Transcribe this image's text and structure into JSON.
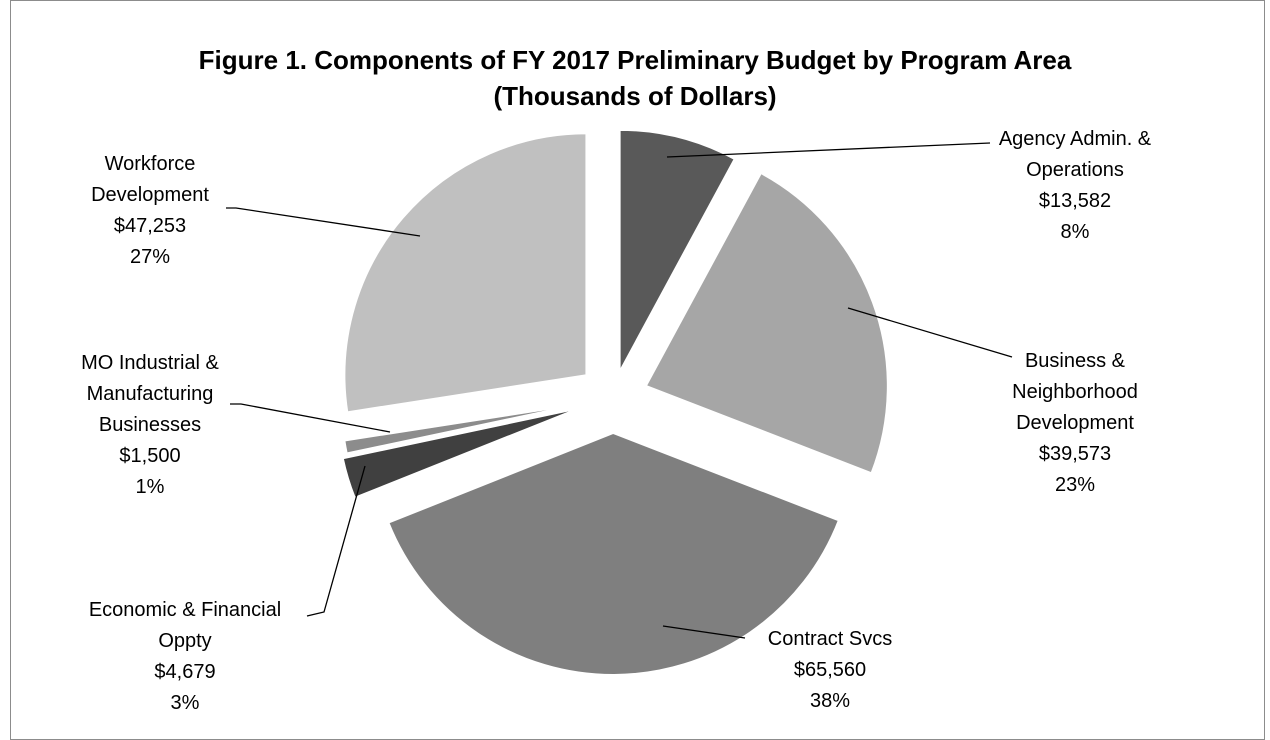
{
  "chart_data": {
    "type": "pie",
    "title": [
      "Figure 1. Components of FY 2017 Preliminary Budget by Program Area",
      "(Thousands of Dollars)"
    ],
    "slices": [
      {
        "label": [
          "Agency Admin. &",
          "Operations"
        ],
        "value": 13582,
        "value_label": "$13,582",
        "percent_label": "8%",
        "color": "#595959"
      },
      {
        "label": [
          "Business &",
          "Neighborhood",
          "Development"
        ],
        "value": 39573,
        "value_label": "$39,573",
        "percent_label": "23%",
        "color": "#a6a6a6"
      },
      {
        "label": [
          "Contract Svcs"
        ],
        "value": 65560,
        "value_label": "$65,560",
        "percent_label": "38%",
        "color": "#7f7f7f"
      },
      {
        "label": [
          "Economic & Financial",
          "Oppty"
        ],
        "value": 4679,
        "value_label": "$4,679",
        "percent_label": "3%",
        "color": "#404040"
      },
      {
        "label": [
          "MO Industrial &",
          "Manufacturing",
          "Businesses"
        ],
        "value": 1500,
        "value_label": "$1,500",
        "percent_label": "1%",
        "color": "#8c8c8c"
      },
      {
        "label": [
          "Workforce",
          "Development"
        ],
        "value": 47253,
        "value_label": "$47,253",
        "percent_label": "27%",
        "color": "#c0c0c0"
      }
    ]
  }
}
